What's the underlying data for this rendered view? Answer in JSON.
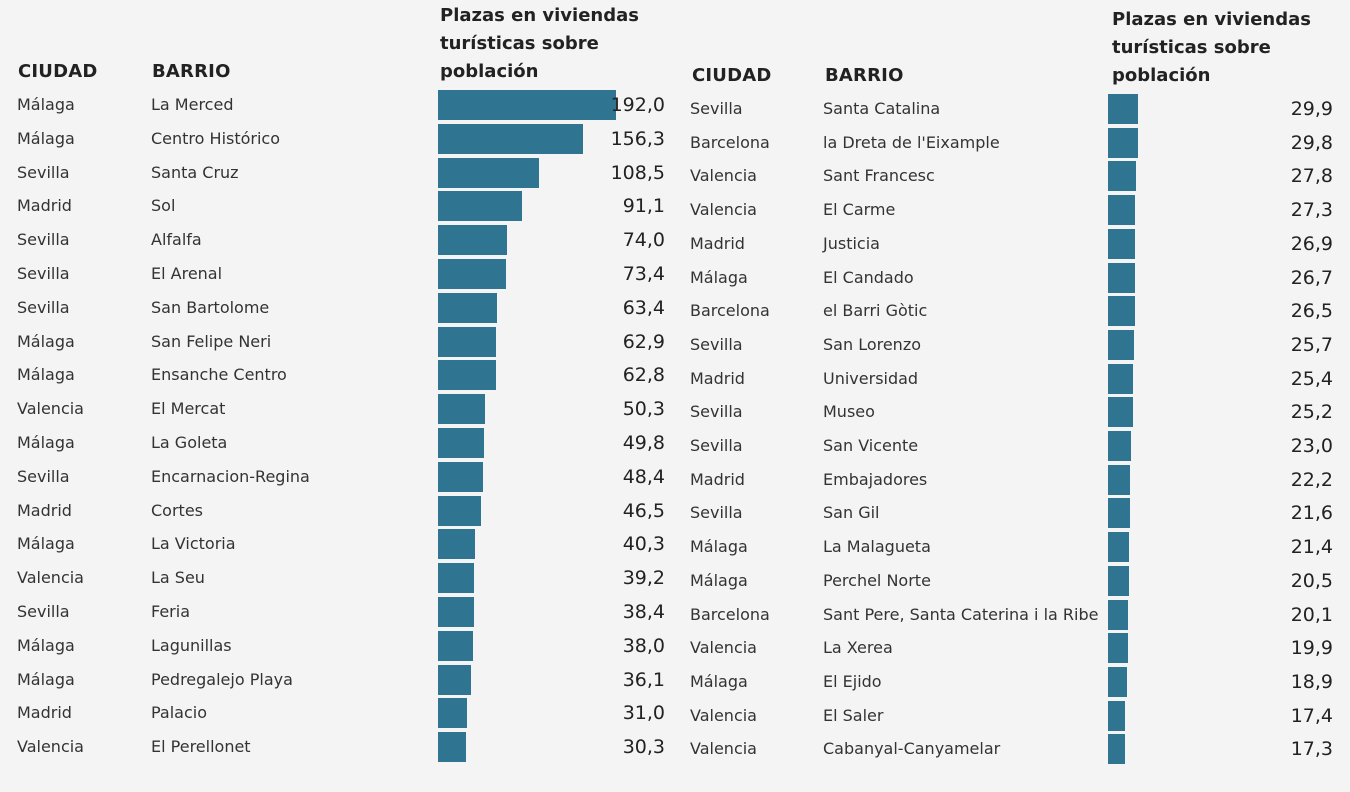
{
  "chart_data": [
    {
      "type": "bar",
      "headers": {
        "ciudad": "CIUDAD",
        "barrio": "BARRIO",
        "value_title": "Plazas en viviendas turísticas sobre población"
      },
      "color": "#2f7591",
      "rows": [
        {
          "ciudad": "Málaga",
          "barrio": "La Merced",
          "value": 192.0,
          "label": "192,0"
        },
        {
          "ciudad": "Málaga",
          "barrio": "Centro Histórico",
          "value": 156.3,
          "label": "156,3"
        },
        {
          "ciudad": "Sevilla",
          "barrio": "Santa Cruz",
          "value": 108.5,
          "label": "108,5"
        },
        {
          "ciudad": "Madrid",
          "barrio": "Sol",
          "value": 91.1,
          "label": "91,1"
        },
        {
          "ciudad": "Sevilla",
          "barrio": "Alfalfa",
          "value": 74.0,
          "label": "74,0"
        },
        {
          "ciudad": "Sevilla",
          "barrio": "El Arenal",
          "value": 73.4,
          "label": "73,4"
        },
        {
          "ciudad": "Sevilla",
          "barrio": "San Bartolome",
          "value": 63.4,
          "label": "63,4"
        },
        {
          "ciudad": "Málaga",
          "barrio": "San Felipe Neri",
          "value": 62.9,
          "label": "62,9"
        },
        {
          "ciudad": "Málaga",
          "barrio": "Ensanche Centro",
          "value": 62.8,
          "label": "62,8"
        },
        {
          "ciudad": "Valencia",
          "barrio": "El Mercat",
          "value": 50.3,
          "label": "50,3"
        },
        {
          "ciudad": "Málaga",
          "barrio": "La Goleta",
          "value": 49.8,
          "label": "49,8"
        },
        {
          "ciudad": "Sevilla",
          "barrio": "Encarnacion-Regina",
          "value": 48.4,
          "label": "48,4"
        },
        {
          "ciudad": "Madrid",
          "barrio": "Cortes",
          "value": 46.5,
          "label": "46,5"
        },
        {
          "ciudad": "Málaga",
          "barrio": "La Victoria",
          "value": 40.3,
          "label": "40,3"
        },
        {
          "ciudad": "Valencia",
          "barrio": "La Seu",
          "value": 39.2,
          "label": "39,2"
        },
        {
          "ciudad": "Sevilla",
          "barrio": "Feria",
          "value": 38.4,
          "label": "38,4"
        },
        {
          "ciudad": "Málaga",
          "barrio": "Lagunillas",
          "value": 38.0,
          "label": "38,0"
        },
        {
          "ciudad": "Málaga",
          "barrio": "Pedregalejo Playa",
          "value": 36.1,
          "label": "36,1"
        },
        {
          "ciudad": "Madrid",
          "barrio": "Palacio",
          "value": 31.0,
          "label": "31,0"
        },
        {
          "ciudad": "Valencia",
          "barrio": "El Perellonet",
          "value": 30.3,
          "label": "30,3"
        }
      ]
    },
    {
      "type": "bar",
      "headers": {
        "ciudad": "CIUDAD",
        "barrio": "BARRIO",
        "value_title": "Plazas en viviendas turísticas sobre población"
      },
      "color": "#2f7591",
      "rows": [
        {
          "ciudad": "Sevilla",
          "barrio": "Santa Catalina",
          "value": 29.9,
          "label": "29,9"
        },
        {
          "ciudad": "Barcelona",
          "barrio": "la Dreta de l'Eixample",
          "value": 29.8,
          "label": "29,8"
        },
        {
          "ciudad": "Valencia",
          "barrio": "Sant Francesc",
          "value": 27.8,
          "label": "27,8"
        },
        {
          "ciudad": "Valencia",
          "barrio": "El Carme",
          "value": 27.3,
          "label": "27,3"
        },
        {
          "ciudad": "Madrid",
          "barrio": "Justicia",
          "value": 26.9,
          "label": "26,9"
        },
        {
          "ciudad": "Málaga",
          "barrio": "El Candado",
          "value": 26.7,
          "label": "26,7"
        },
        {
          "ciudad": "Barcelona",
          "barrio": "el Barri Gòtic",
          "value": 26.5,
          "label": "26,5"
        },
        {
          "ciudad": "Sevilla",
          "barrio": "San Lorenzo",
          "value": 25.7,
          "label": "25,7"
        },
        {
          "ciudad": "Madrid",
          "barrio": "Universidad",
          "value": 25.4,
          "label": "25,4"
        },
        {
          "ciudad": "Sevilla",
          "barrio": "Museo",
          "value": 25.2,
          "label": "25,2"
        },
        {
          "ciudad": "Sevilla",
          "barrio": "San Vicente",
          "value": 23.0,
          "label": "23,0"
        },
        {
          "ciudad": "Madrid",
          "barrio": "Embajadores",
          "value": 22.2,
          "label": "22,2"
        },
        {
          "ciudad": "Sevilla",
          "barrio": "San Gil",
          "value": 21.6,
          "label": "21,6"
        },
        {
          "ciudad": "Málaga",
          "barrio": "La Malagueta",
          "value": 21.4,
          "label": "21,4"
        },
        {
          "ciudad": "Málaga",
          "barrio": "Perchel Norte",
          "value": 20.5,
          "label": "20,5"
        },
        {
          "ciudad": "Barcelona",
          "barrio": "Sant Pere, Santa Caterina i la Ribe",
          "value": 20.1,
          "label": "20,1"
        },
        {
          "ciudad": "Valencia",
          "barrio": "La Xerea",
          "value": 19.9,
          "label": "19,9"
        },
        {
          "ciudad": "Málaga",
          "barrio": "El Ejido",
          "value": 18.9,
          "label": "18,9"
        },
        {
          "ciudad": "Valencia",
          "barrio": "El Saler",
          "value": 17.4,
          "label": "17,4"
        },
        {
          "ciudad": "Valencia",
          "barrio": "Cabanyal-Canyamelar",
          "value": 17.3,
          "label": "17,3"
        }
      ]
    }
  ]
}
